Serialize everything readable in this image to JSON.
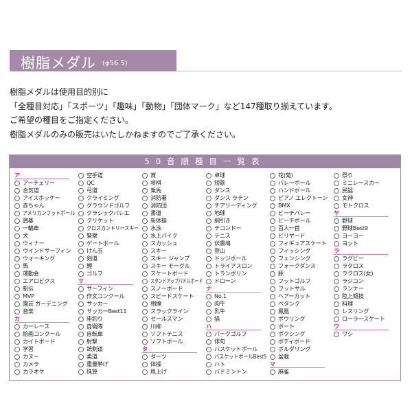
{
  "header": {
    "title": "樹脂メダル",
    "subtitle": "(φ56.5)"
  },
  "intro": [
    "樹脂メダルは使用目的別に",
    "「全種目対応」「スポーツ」「趣味」「動物」「団体マーク」など147種取り揃えています。",
    "ご希望の種目をご指定ください。",
    "樹脂メダルのみの販売はいたしかねますのでご了承ください。"
  ],
  "table": {
    "title": "50音順種目一覧表",
    "accent": "#d6207f",
    "columns": [
      [
        {
          "section": "ア"
        },
        "アーチェリー",
        "合気道",
        "アイスホッケー",
        "赤ちゃん",
        "アメリカンフットボール",
        "囲碁",
        "一輪車",
        "犬",
        "ウィナー",
        "ウインドサーフィン",
        "ウォーキング",
        "馬",
        "運動会",
        "エアロビクス",
        "駅伝",
        "MVP",
        "園芸 ガーデニング",
        "音楽",
        {
          "section": "カ"
        },
        "カーレース",
        "絵画コンクール",
        "カイトボード",
        "学習",
        "カヌー",
        "カメラ",
        "カラオケ"
      ],
      [
        "空手道",
        "QC",
        "弓道",
        "クライミング",
        "グラウンドゴルフ",
        "クラシックバレエ",
        "クリケット",
        "クロスカントリースキー",
        "警察",
        "ゲートボール",
        "けん玉",
        "剣道",
        "鯉",
        "ゴルフ",
        {
          "section": "サ"
        },
        "サーフィン",
        "作文コンクール",
        "サッカー",
        "サッカーBest11",
        "座釣り",
        "自衛隊",
        "自転車",
        "射撃",
        "銃剣道",
        "柔道",
        "重量挙げ",
        "珠算"
      ],
      [
        "賞",
        "将棋",
        "乗馬",
        "消防署",
        "消防団",
        "書道",
        "新体操",
        "水泳",
        "水上バイク",
        "スカッシュ",
        "スキー",
        "スキー ジャンプ",
        "スキー モーグル",
        "スケートボード",
        "スタンドアップパドルボード",
        "スノーボード",
        "スピードスケート",
        "相撲",
        "スラックライン",
        "セールスマン",
        "川柳",
        "ソフトテニス",
        "ソフトボール",
        {
          "section": "タ"
        },
        "ダーツ",
        "体操",
        "凧上げ"
      ],
      [
        "卓球",
        "短歌",
        "ダンス",
        "ダンス ラテン",
        "チアリーディング",
        "地球",
        "綱引き",
        "テコンドー",
        "テニス",
        "伝書鳩",
        "登山",
        "ドッジボール",
        "トライアスロン",
        "トランポリン",
        "ドローン",
        {
          "section": "ナ"
        },
        "No.1",
        "肉牛",
        "乳牛",
        "猫",
        {
          "section": "ハ"
        },
        "パークゴルフ",
        "俳句",
        "バスケットボール",
        "バスケットボールBest5",
        "ハト",
        "バドミントン"
      ],
      [
        "花(菊)",
        "バレーボール",
        "ハンドボール",
        "ピアノ エレクトーン",
        "BMX",
        "ビーチバレー",
        "ビーチボール",
        "百人一首",
        "ビリヤード",
        "フィギュアスケート",
        "フィッシング",
        "フェンシング",
        "フォークダンス",
        "豚",
        "フットゴルフ",
        "フットサル",
        "ヘアーカット",
        "ペタンク",
        "鳳凰",
        "ボウリング",
        "ボート",
        "ボクシング",
        "ボディボード",
        "ボルダリング",
        "盆栽",
        {
          "section": "マ"
        },
        "麻雀"
      ],
      [
        "祭り",
        "ミニレースカー",
        "民謡",
        "女神",
        "モトクロス",
        {
          "section": "ヤ"
        },
        "野球",
        "野球Best9",
        "ヨーヨー",
        "ヨット",
        {
          "section": "ラ"
        },
        "ラグビー",
        "ラクロス",
        "ラクロス(女)",
        "ラジコン",
        "ランナー",
        "陸上競技",
        "料理",
        "レスリング",
        "ローラースケート",
        {
          "section": "ワ"
        },
        "ワシ"
      ]
    ]
  }
}
